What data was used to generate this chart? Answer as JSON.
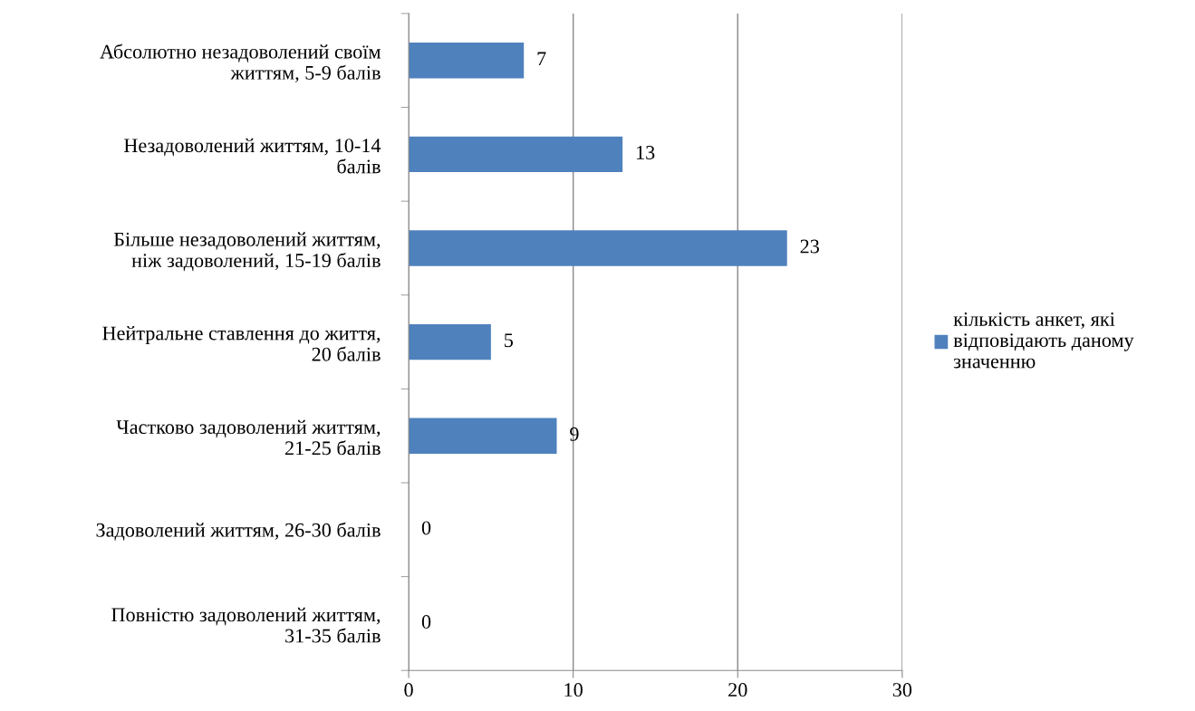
{
  "chart_data": {
    "type": "bar",
    "orientation": "horizontal",
    "categories": [
      "Абсолютно незадоволений своїм\nжиттям, 5-9 балів",
      "Незадоволений життям, 10-14\nбалів",
      "Більше незадоволений життям,\nніж задоволений, 15-19 балів",
      "Нейтральне ставлення до життя,\n20 балів",
      "Частково задоволений життям,\n21-25 балів",
      "Задоволений життям, 26-30 балів",
      "Повністю задоволений життям,\n31-35 балів"
    ],
    "series": [
      {
        "name": "кількість анкет, які\nвідповідають даному\nзначенню",
        "color": "#4f81bd",
        "values": [
          7,
          13,
          23,
          5,
          9,
          0,
          0
        ]
      }
    ],
    "xlim": [
      0,
      30
    ],
    "xticks": [
      0,
      10,
      20,
      30
    ],
    "grid": "x",
    "legend": "right",
    "data_labels": true
  }
}
